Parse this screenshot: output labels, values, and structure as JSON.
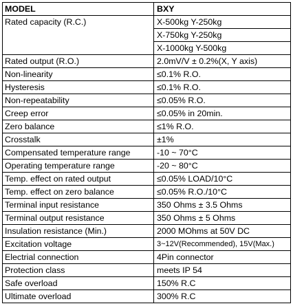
{
  "table": {
    "header": [
      "MODEL",
      "BXY"
    ],
    "rows": [
      {
        "label": "Rated capacity (R.C.)",
        "values": [
          "X-500kg  Y-250kg",
          "X-750kg  Y-250kg",
          "X-1000kg  Y-500kg"
        ]
      },
      {
        "label": "Rated output (R.O.)",
        "values": [
          "2.0mV/V ± 0.2%(X, Y axis)"
        ]
      },
      {
        "label": "Non-linearity",
        "values": [
          "≤0.1% R.O."
        ]
      },
      {
        "label": "Hysteresis",
        "values": [
          "≤0.1% R.O."
        ]
      },
      {
        "label": "Non-repeatability",
        "values": [
          "≤0.05% R.O."
        ]
      },
      {
        "label": "Creep error",
        "values": [
          "≤0.05% in 20min."
        ]
      },
      {
        "label": "Zero balance",
        "values": [
          "≤1% R.O."
        ]
      },
      {
        "label": "Crosstalk",
        "values": [
          "±1%"
        ]
      },
      {
        "label": "Compensated temperature range",
        "values": [
          "-10 ~ 70°C"
        ]
      },
      {
        "label": "Operating temperature range",
        "values": [
          "-20 ~ 80°C"
        ]
      },
      {
        "label": "Temp. effect on rated output",
        "values": [
          "≤0.05% LOAD/10°C"
        ]
      },
      {
        "label": "Temp. effect on zero balance",
        "values": [
          "≤0.05% R.O./10°C"
        ]
      },
      {
        "label": "Terminal input resistance",
        "values": [
          "350 Ohms ± 3.5 Ohms"
        ]
      },
      {
        "label": "Terminal output resistance",
        "values": [
          "350 Ohms ± 5 Ohms"
        ]
      },
      {
        "label": "Insulation resistance (Min.)",
        "values": [
          "2000 MOhms at 50V DC"
        ]
      },
      {
        "label": "Excitation voltage",
        "values": [
          "3~12V(Recommended), 15V(Max.)"
        ]
      },
      {
        "label": "Electrial connection",
        "values": [
          "4Pin connector"
        ]
      },
      {
        "label": "Protection class",
        "values": [
          "meets IP 54"
        ]
      },
      {
        "label": "Safe overload",
        "values": [
          "150% R.C"
        ]
      },
      {
        "label": "Ultimate overload",
        "values": [
          "300% R.C"
        ]
      }
    ]
  }
}
